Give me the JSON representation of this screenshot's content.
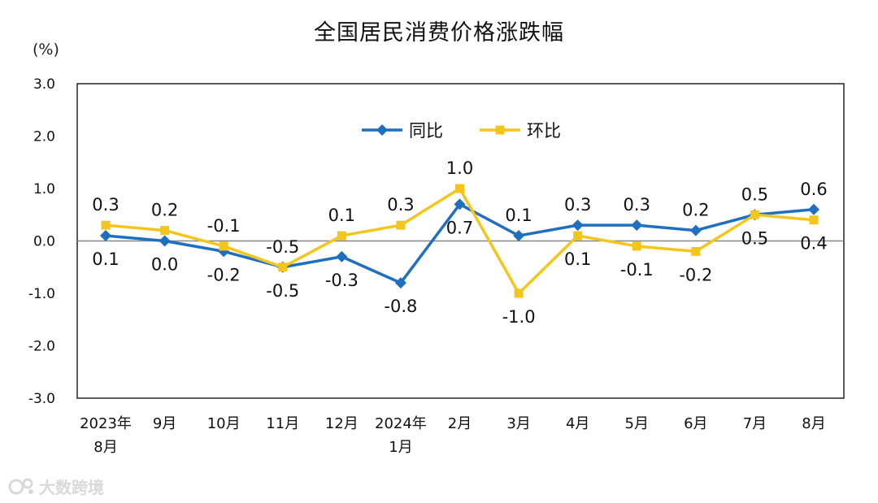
{
  "unit_label": "(%)",
  "watermark": {
    "text": "大数跨境",
    "logo_icon": "brand-logo-icon"
  },
  "colors": {
    "yoy": "#1f6fc1",
    "mom": "#f4c61c",
    "axis": "#888888",
    "frame": "#222222",
    "text": "#111111"
  },
  "chart_data": {
    "type": "line",
    "title": "全国居民消费价格涨跌幅",
    "xlabel": "",
    "ylabel": "(%)",
    "ylim": [
      -3.0,
      3.0
    ],
    "yticks": [
      "3.0",
      "2.0",
      "1.0",
      "0.0",
      "-1.0",
      "-2.0",
      "-3.0"
    ],
    "grid": false,
    "legend_position": "top-center",
    "categories": [
      [
        "2023年",
        "8月"
      ],
      [
        "9月"
      ],
      [
        "10月"
      ],
      [
        "11月"
      ],
      [
        "12月"
      ],
      [
        "2024年",
        "1月"
      ],
      [
        "2月"
      ],
      [
        "3月"
      ],
      [
        "4月"
      ],
      [
        "5月"
      ],
      [
        "6月"
      ],
      [
        "7月"
      ],
      [
        "8月"
      ]
    ],
    "series": [
      {
        "name": "同比",
        "marker": "diamond",
        "color": "#1f6fc1",
        "values": [
          0.1,
          0.0,
          -0.2,
          -0.5,
          -0.3,
          -0.8,
          0.7,
          0.1,
          0.3,
          0.3,
          0.2,
          0.5,
          0.6
        ],
        "labels": [
          "0.1",
          "0.0",
          "-0.2",
          "-0.5",
          "-0.3",
          "-0.8",
          "0.7",
          "0.1",
          "0.3",
          "0.3",
          "0.2",
          "0.5",
          "0.6"
        ],
        "label_side": [
          "below",
          "below",
          "below",
          "below",
          "below",
          "below",
          "below",
          "above",
          "above",
          "above",
          "above",
          "above",
          "above"
        ]
      },
      {
        "name": "环比",
        "marker": "square",
        "color": "#f4c61c",
        "values": [
          0.3,
          0.2,
          -0.1,
          -0.5,
          0.1,
          0.3,
          1.0,
          -1.0,
          0.1,
          -0.1,
          -0.2,
          0.5,
          0.4
        ],
        "labels": [
          "0.3",
          "0.2",
          "-0.1",
          "-0.5",
          "0.1",
          "0.3",
          "1.0",
          "-1.0",
          "0.1",
          "-0.1",
          "-0.2",
          "0.5",
          "0.4"
        ],
        "label_side": [
          "above",
          "above",
          "above",
          "above",
          "above",
          "above",
          "above",
          "below",
          "below",
          "below",
          "below",
          "below",
          "below"
        ]
      }
    ]
  }
}
